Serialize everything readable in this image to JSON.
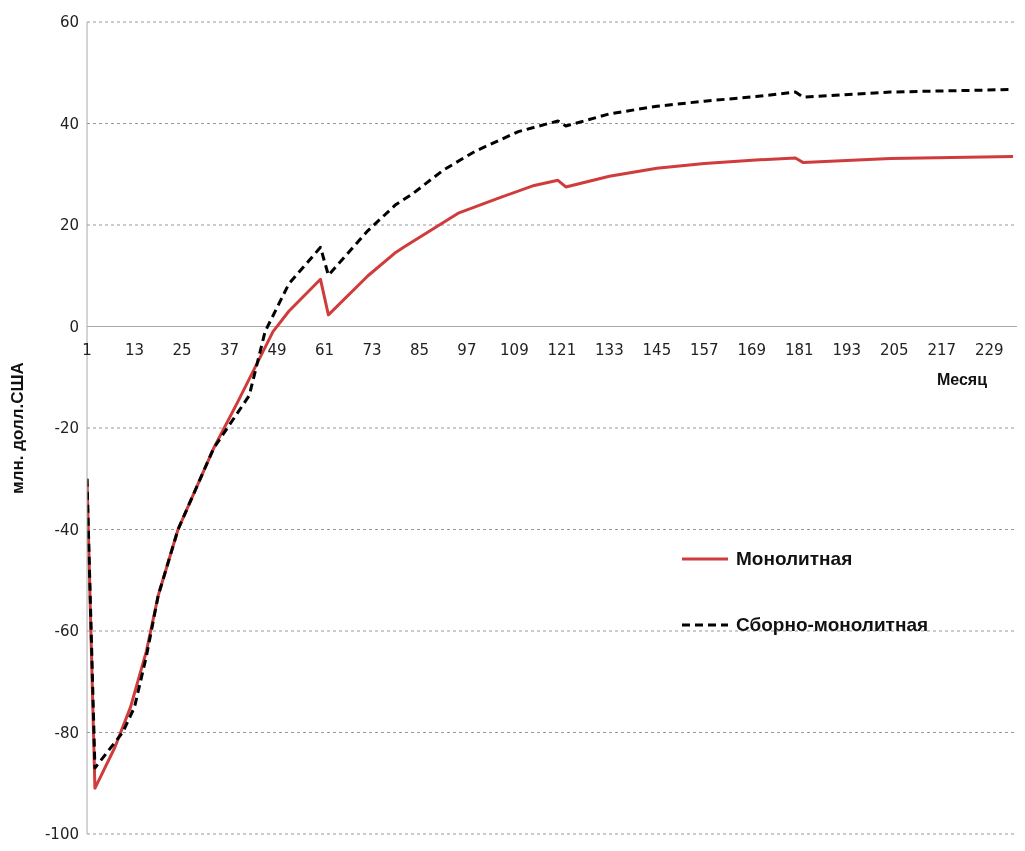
{
  "chart_data": {
    "type": "line",
    "ylabel": "млн. долл.США",
    "xlabel": "Месяц",
    "xlim": [
      1,
      236
    ],
    "xticks": [
      1,
      13,
      25,
      37,
      49,
      61,
      73,
      85,
      97,
      109,
      121,
      133,
      145,
      157,
      169,
      181,
      193,
      205,
      217,
      229
    ],
    "ylim": [
      -100,
      60
    ],
    "yticks": [
      -100,
      -80,
      -60,
      -40,
      -20,
      0,
      20,
      40,
      60
    ],
    "grid": "y",
    "legend": "right",
    "marker": "none",
    "series": [
      {
        "name": "Монолитная",
        "color": "#d03c3c",
        "line_style": "solid",
        "x": [
          1,
          3,
          8,
          12,
          16,
          19,
          24,
          33,
          39,
          48,
          52,
          60,
          62,
          72,
          79,
          81,
          88,
          95,
          105,
          114,
          120,
          122,
          133,
          145,
          157,
          170,
          180,
          182,
          204,
          235
        ],
        "values": [
          -30,
          -91,
          -83,
          -75,
          -64,
          -53,
          -40,
          -24,
          -15,
          -1,
          3,
          9.3,
          2.3,
          10,
          14.6,
          15.6,
          19,
          22.4,
          25.3,
          27.8,
          28.8,
          27.5,
          29.6,
          31.2,
          32.1,
          32.8,
          33.2,
          32.3,
          33.1,
          33.5
        ]
      },
      {
        "name": "Сборно-монолитная",
        "color": "#000000",
        "line_style": "dashed",
        "x": [
          1,
          3,
          10,
          13,
          16,
          19,
          24,
          33,
          42,
          46,
          52,
          60,
          62,
          72,
          79,
          83,
          91,
          99,
          110,
          120,
          122,
          133,
          145,
          157,
          170,
          180,
          182,
          204,
          235
        ],
        "values": [
          -30,
          -87,
          -80,
          -75,
          -65,
          -53,
          -40,
          -24,
          -13.6,
          -1,
          8.4,
          15.6,
          10.1,
          18.9,
          24,
          26,
          30.8,
          34.5,
          38.4,
          40.5,
          39.5,
          41.9,
          43.4,
          44.4,
          45.3,
          46.2,
          45.2,
          46.2,
          46.7
        ]
      }
    ]
  }
}
